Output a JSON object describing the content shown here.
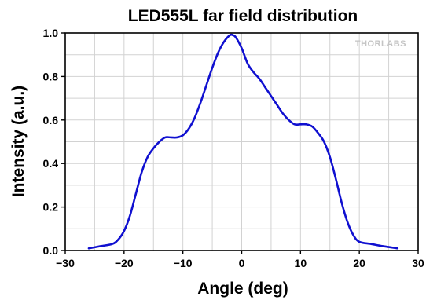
{
  "chart_data": {
    "type": "line",
    "title": "LED555L far field distribution",
    "xlabel": "Angle (deg)",
    "ylabel": "Intensity (a.u.)",
    "xlim": [
      -30,
      30
    ],
    "ylim": [
      0,
      1.0
    ],
    "xticks": [
      -30,
      -20,
      -10,
      0,
      10,
      20,
      30
    ],
    "xtick_labels": [
      "−30",
      "−20",
      "−10",
      "0",
      "10",
      "20",
      "30"
    ],
    "yticks": [
      0,
      0.2,
      0.4,
      0.6,
      0.8,
      1.0
    ],
    "ytick_labels": [
      "0.0",
      "0.2",
      "0.4",
      "0.6",
      "0.8",
      "1.0"
    ],
    "grid": true,
    "watermark": "THORLABS",
    "series": [
      {
        "color": "#1010d0",
        "x": [
          -26,
          -24,
          -22,
          -21,
          -20,
          -19,
          -18,
          -17,
          -16,
          -15,
          -14,
          -13,
          -12,
          -11,
          -10,
          -9,
          -8,
          -7,
          -6,
          -5,
          -4,
          -3,
          -2,
          -1.5,
          -1,
          0,
          1,
          2,
          3,
          4,
          5,
          6,
          7,
          8,
          9,
          10,
          11,
          12,
          13,
          14,
          15,
          16,
          17,
          18,
          19,
          20,
          22,
          24,
          26.5
        ],
        "y": [
          0.01,
          0.02,
          0.03,
          0.05,
          0.09,
          0.16,
          0.26,
          0.36,
          0.43,
          0.47,
          0.5,
          0.52,
          0.52,
          0.52,
          0.53,
          0.56,
          0.61,
          0.68,
          0.76,
          0.84,
          0.91,
          0.96,
          0.99,
          0.99,
          0.98,
          0.93,
          0.86,
          0.82,
          0.79,
          0.75,
          0.71,
          0.67,
          0.63,
          0.6,
          0.58,
          0.58,
          0.58,
          0.57,
          0.54,
          0.5,
          0.43,
          0.33,
          0.22,
          0.13,
          0.07,
          0.04,
          0.03,
          0.02,
          0.01
        ]
      }
    ]
  }
}
